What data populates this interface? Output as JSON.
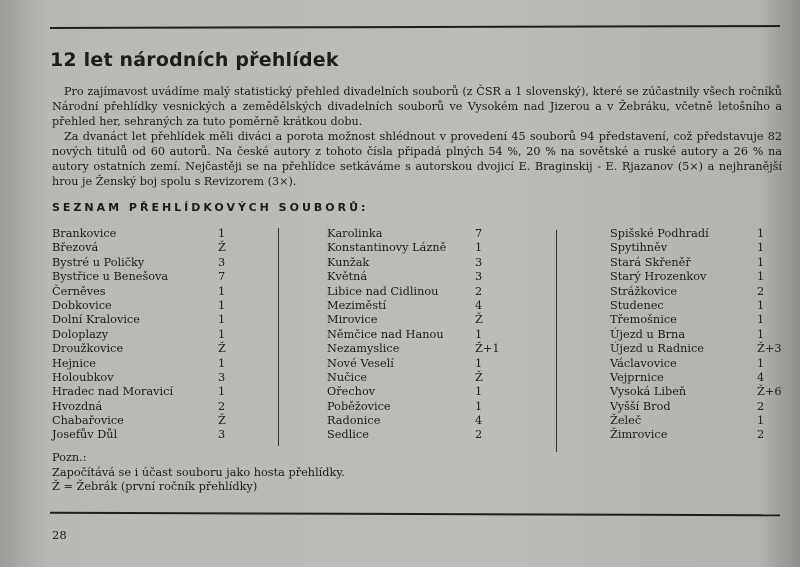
{
  "title": "12 let národních přehlídek",
  "paragraphs": [
    "Pro zajímavost uvádíme malý statistický přehled divadelních souborů (z ČSR a 1 slovenský), které se zúčastnily všech ročníků Národní přehlídky vesnických a zemědělských divadelních souborů ve Vysokém nad Jizerou a v Žebráku, včetně letošního a přehled her, sehraných za tuto poměrně krátkou dobu.",
    "Za dvanáct let přehlídek měli diváci a porota možnost shlédnout v provedení 45 souborů 94 představení, což představuje 82 nových titulů od 60 autorů. Na české autory z tohoto čísla připadá plných 54 %, 20 % na sovětské a ruské autory a 26 % na autory ostatních zemí. Nejčastěji se na přehlídce setkáváme s autorskou dvojicí E. Braginskij - E. Rjazanov (5×) a nejhranější hrou je Ženský boj spolu s Revizorem (3×)."
  ],
  "list_heading": "SEZNAM PŘEHLÍDKOVÝCH SOUBORŮ:",
  "columns": [
    [
      {
        "name": "Brankovice",
        "count": "1"
      },
      {
        "name": "Březová",
        "count": "Ž"
      },
      {
        "name": "Bystré u Poličky",
        "count": "3"
      },
      {
        "name": "Bystřice u Benešova",
        "count": "7"
      },
      {
        "name": "Černěves",
        "count": "1"
      },
      {
        "name": "Dobkovice",
        "count": "1"
      },
      {
        "name": "Dolní Kralovice",
        "count": "1"
      },
      {
        "name": "Doloplazy",
        "count": "1"
      },
      {
        "name": "Droužkovice",
        "count": "Ž"
      },
      {
        "name": "Hejnice",
        "count": "1"
      },
      {
        "name": "Holoubkov",
        "count": "3"
      },
      {
        "name": "Hradec nad Moravicí",
        "count": "1"
      },
      {
        "name": "Hvozdná",
        "count": "2"
      },
      {
        "name": "Chabařovice",
        "count": "Ž"
      },
      {
        "name": "Josefův Důl",
        "count": "3"
      }
    ],
    [
      {
        "name": "Karolinka",
        "count": "7"
      },
      {
        "name": "Konstantinovy Lázně",
        "count": "1"
      },
      {
        "name": "Kunžak",
        "count": "3"
      },
      {
        "name": "Květná",
        "count": "3"
      },
      {
        "name": "Libice nad Cidlinou",
        "count": "2"
      },
      {
        "name": "Meziměstí",
        "count": "4"
      },
      {
        "name": "Mirovice",
        "count": "Ž"
      },
      {
        "name": "Němčice nad Hanou",
        "count": "1"
      },
      {
        "name": "Nezamyslice",
        "count": "Ž+1"
      },
      {
        "name": "Nové Veselí",
        "count": "1"
      },
      {
        "name": "Nučice",
        "count": "Ž"
      },
      {
        "name": "Ořechov",
        "count": "1"
      },
      {
        "name": "Poběžovice",
        "count": "1"
      },
      {
        "name": "Radonice",
        "count": "4"
      },
      {
        "name": "Sedlice",
        "count": "2"
      }
    ],
    [
      {
        "name": "Spišské Podhradí",
        "count": "1"
      },
      {
        "name": "Spytihněv",
        "count": "1"
      },
      {
        "name": "Stará Skřeněř",
        "count": "1"
      },
      {
        "name": "Starý Hrozenkov",
        "count": "1"
      },
      {
        "name": "Strážkovice",
        "count": "2"
      },
      {
        "name": "Studenec",
        "count": "1"
      },
      {
        "name": "Třemošnice",
        "count": "1"
      },
      {
        "name": "Újezd u Brna",
        "count": "1"
      },
      {
        "name": "Újezd u Radnice",
        "count": "Ž+3"
      },
      {
        "name": "Václavovice",
        "count": "1"
      },
      {
        "name": "Vejprnice",
        "count": "4"
      },
      {
        "name": "Vysoká Libeň",
        "count": "Ž+6"
      },
      {
        "name": "Vyšší Brod",
        "count": "2"
      },
      {
        "name": "Želeč",
        "count": "1"
      },
      {
        "name": "Žimrovice",
        "count": "2"
      }
    ]
  ],
  "note": {
    "label": "Pozn.:",
    "lines": [
      "Započítává se i účast souboru jako hosta přehlídky.",
      "Ž = Žebrák (první ročník přehlídky)"
    ]
  },
  "page_number": "28"
}
